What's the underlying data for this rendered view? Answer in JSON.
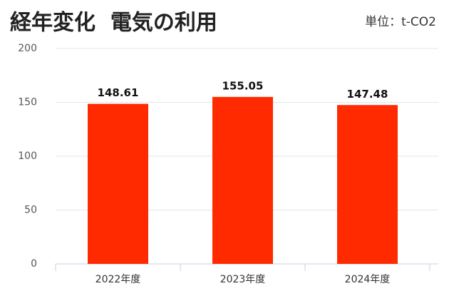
{
  "chart_data": {
    "type": "bar",
    "title": "経年変化  電気の利用",
    "subtitle": "単位：t-CO2",
    "categories": [
      "2022年度",
      "2023年度",
      "2024年度"
    ],
    "values": [
      148.61,
      155.05,
      147.48
    ],
    "color": "#ff2a00",
    "ylim": [
      0,
      200
    ],
    "yticks": [
      0,
      50,
      100,
      150,
      200
    ],
    "grid": true
  }
}
